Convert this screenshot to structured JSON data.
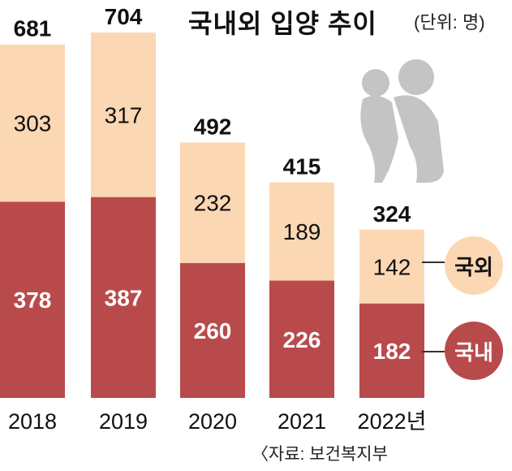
{
  "header": {
    "title": "국내외 입양 추이",
    "unit": "(단위: 명)"
  },
  "footer": {
    "source": "〈자료: 보건복지부"
  },
  "legend": {
    "foreign": "국외",
    "domestic": "국내"
  },
  "colors": {
    "foreign": "#fcd7b4",
    "domestic": "#b94a4c",
    "text_dark": "#111111",
    "text_light": "#ffffff"
  },
  "chart_data": {
    "type": "bar",
    "stacked": true,
    "title": "국내외 입양 추이",
    "unit": "(단위: 명)",
    "categories": [
      "2018",
      "2019",
      "2020",
      "2021",
      "2022년"
    ],
    "series": [
      {
        "name": "국내",
        "values": [
          378,
          387,
          260,
          226,
          182
        ]
      },
      {
        "name": "국외",
        "values": [
          303,
          317,
          232,
          189,
          142
        ]
      }
    ],
    "totals": [
      681,
      704,
      492,
      415,
      324
    ],
    "ylim": [
      0,
      704
    ],
    "grid": false
  }
}
